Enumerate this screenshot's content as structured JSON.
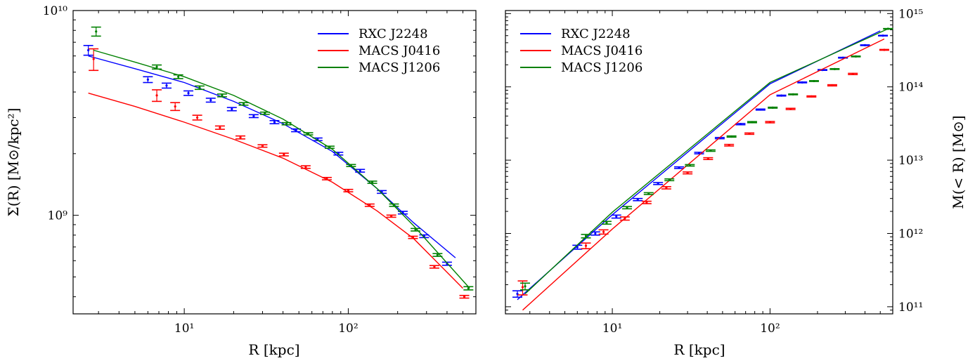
{
  "chart_data": [
    {
      "type": "line",
      "xlabel": "R [kpc]",
      "ylabel": "Σ(R) [M⊙/kpc²]",
      "x_scale": "log",
      "y_scale": "log",
      "xlim": [
        2.1,
        600
      ],
      "ylim": [
        330000000.0,
        10000000000.0
      ],
      "x_major_ticks": [
        {
          "value": 10,
          "label": "10¹"
        },
        {
          "value": 100,
          "label": "10²"
        }
      ],
      "y_major_ticks": [
        {
          "value": 1000000000.0,
          "label": "10⁹"
        },
        {
          "value": 10000000000.0,
          "label": "10¹⁰"
        }
      ],
      "legend": "top-right",
      "grid": false,
      "series": [
        {
          "name": "RXC J2248",
          "color": "#0000ff",
          "model_x": [
            2.6,
            5,
            10,
            20,
            40,
            80,
            150,
            250,
            450
          ],
          "model_y": [
            6000000000.0,
            5200000000.0,
            4450000000.0,
            3600000000.0,
            2800000000.0,
            2050000000.0,
            1350000000.0,
            920000000.0,
            620000000.0
          ],
          "points_x": [
            2.6,
            6.0,
            7.8,
            10.6,
            14.5,
            19.5,
            26.5,
            35.5,
            48,
            65,
            87,
            118,
            160,
            215,
            290,
            400
          ],
          "points_y": [
            6400000000.0,
            4600000000.0,
            4300000000.0,
            3950000000.0,
            3650000000.0,
            3300000000.0,
            3050000000.0,
            2850000000.0,
            2600000000.0,
            2350000000.0,
            2000000000.0,
            1650000000.0,
            1300000000.0,
            1030000000.0,
            790000000.0,
            580000000.0
          ],
          "errors": [
            350000000.0,
            150000000.0,
            120000000.0,
            100000000.0,
            80000000.0,
            60000000.0,
            50000000.0,
            50000000.0,
            40000000.0,
            35000000.0,
            30000000.0,
            25000000.0,
            20000000.0,
            15000000.0,
            12000000.0,
            10000000.0
          ]
        },
        {
          "name": "MACS J0416",
          "color": "#ff0000",
          "model_x": [
            2.6,
            5,
            10,
            20,
            40,
            80,
            150,
            250,
            500
          ],
          "model_y": [
            3950000000.0,
            3400000000.0,
            2850000000.0,
            2350000000.0,
            1900000000.0,
            1450000000.0,
            1050000000.0,
            770000000.0,
            440000000.0
          ],
          "points_x": [
            2.8,
            6.8,
            8.8,
            12,
            16.5,
            22,
            30,
            40.5,
            55,
            74,
            100,
            135,
            183,
            248,
            335,
            510
          ],
          "points_y": [
            5800000000.0,
            3850000000.0,
            3400000000.0,
            3000000000.0,
            2680000000.0,
            2400000000.0,
            2180000000.0,
            1980000000.0,
            1720000000.0,
            1510000000.0,
            1320000000.0,
            1120000000.0,
            990000000.0,
            780000000.0,
            560000000.0,
            400000000.0
          ],
          "errors": [
            700000000.0,
            250000000.0,
            150000000.0,
            80000000.0,
            50000000.0,
            40000000.0,
            30000000.0,
            30000000.0,
            25000000.0,
            20000000.0,
            18000000.0,
            15000000.0,
            12000000.0,
            10000000.0,
            8000000.0,
            6000000.0
          ]
        },
        {
          "name": "MACS J1206",
          "color": "#008000",
          "model_x": [
            2.8,
            5,
            10,
            20,
            40,
            80,
            150,
            250,
            550
          ],
          "model_y": [
            6400000000.0,
            5600000000.0,
            4750000000.0,
            3850000000.0,
            2950000000.0,
            2100000000.0,
            1350000000.0,
            890000000.0,
            440000000.0
          ],
          "points_x": [
            2.9,
            6.8,
            9.2,
            12.4,
            17,
            23,
            31,
            42,
            57,
            77,
            104,
            140,
            190,
            257,
            350,
            540
          ],
          "points_y": [
            7900000000.0,
            5300000000.0,
            4750000000.0,
            4200000000.0,
            3850000000.0,
            3500000000.0,
            3150000000.0,
            2800000000.0,
            2500000000.0,
            2150000000.0,
            1750000000.0,
            1450000000.0,
            1120000000.0,
            850000000.0,
            640000000.0,
            440000000.0
          ],
          "errors": [
            400000000.0,
            120000000.0,
            100000000.0,
            80000000.0,
            60000000.0,
            50000000.0,
            40000000.0,
            35000000.0,
            30000000.0,
            25000000.0,
            20000000.0,
            18000000.0,
            15000000.0,
            12000000.0,
            10000000.0,
            8000000.0
          ]
        }
      ]
    },
    {
      "type": "line",
      "xlabel": "R [kpc]",
      "ylabel": "M(< R) [M⊙]",
      "x_scale": "log",
      "y_scale": "log",
      "xlim": [
        2.1,
        600
      ],
      "ylim": [
        80000000000.0,
        1100000000000000.0
      ],
      "x_major_ticks": [
        {
          "value": 10,
          "label": "10¹"
        },
        {
          "value": 100,
          "label": "10²"
        }
      ],
      "y_major_ticks": [
        {
          "value": 100000000000.0,
          "label": "10¹¹"
        },
        {
          "value": 1000000000000.0,
          "label": "10¹²"
        },
        {
          "value": 10000000000000.0,
          "label": "10¹³"
        },
        {
          "value": 100000000000000.0,
          "label": "10¹⁴"
        },
        {
          "value": 1000000000000000.0,
          "label": "10¹⁵"
        }
      ],
      "legend": "top-left",
      "grid": false,
      "series": [
        {
          "name": "RXC J2248",
          "color": "#0000ff",
          "model_x": [
            2.5,
            10,
            100,
            500
          ],
          "model_y": [
            125000000000.0,
            1800000000000.0,
            110000000000000.0,
            580000000000000.0
          ],
          "points_x": [
            2.5,
            6.0,
            7.8,
            10.6,
            14.5,
            19.5,
            26.5,
            35.5,
            48,
            65,
            87,
            118,
            160,
            215,
            290,
            400,
            520
          ],
          "points_y": [
            150000000000.0,
            650000000000.0,
            1000000000000.0,
            1700000000000.0,
            2900000000000.0,
            4800000000000.0,
            7900000000000.0,
            12500000000000.0,
            20000000000000.0,
            31000000000000.0,
            49000000000000.0,
            76000000000000.0,
            115000000000000.0,
            170000000000000.0,
            250000000000000.0,
            370000000000000.0,
            500000000000000.0
          ],
          "errors": [
            15000000000.0,
            40000000000.0,
            50000000000.0,
            80000000000.0,
            100000000000.0,
            150000000000.0,
            200000000000.0,
            300000000000.0,
            400000000000.0,
            600000000000.0,
            800000000000.0,
            1000000000000.0,
            1500000000000.0,
            2000000000000.0,
            3000000000000.0,
            4000000000000.0,
            5000000000000.0
          ]
        },
        {
          "name": "MACS J0416",
          "color": "#ff0000",
          "model_x": [
            2.7,
            10,
            100,
            530
          ],
          "model_y": [
            90000000000.0,
            1150000000000.0,
            78000000000000.0,
            450000000000000.0
          ],
          "points_x": [
            2.7,
            6.8,
            8.8,
            12,
            16.5,
            22,
            30,
            40.5,
            55,
            74,
            100,
            135,
            183,
            248,
            335,
            530
          ],
          "points_y": [
            185000000000.0,
            680000000000.0,
            1050000000000.0,
            1600000000000.0,
            2650000000000.0,
            4200000000000.0,
            6700000000000.0,
            10500000000000.0,
            16000000000000.0,
            23000000000000.0,
            33000000000000.0,
            50000000000000.0,
            74000000000000.0,
            105000000000000.0,
            150000000000000.0,
            320000000000000.0
          ],
          "errors": [
            40000000000.0,
            60000000000.0,
            70000000000.0,
            80000000000.0,
            100000000000.0,
            150000000000.0,
            200000000000.0,
            300000000000.0,
            400000000000.0,
            500000000000.0,
            700000000000.0,
            1000000000000.0,
            1300000000000.0,
            2000000000000.0,
            3000000000000.0,
            4000000000000.0
          ]
        },
        {
          "name": "MACS J1206",
          "color": "#008000",
          "model_x": [
            2.8,
            10,
            100,
            560
          ],
          "model_y": [
            150000000000.0,
            1950000000000.0,
            115000000000000.0,
            620000000000000.0
          ],
          "points_x": [
            2.8,
            6.8,
            9.2,
            12.4,
            17,
            23,
            31,
            42,
            57,
            77,
            104,
            140,
            190,
            257,
            350,
            560
          ],
          "points_y": [
            190000000000.0,
            920000000000.0,
            1400000000000.0,
            2250000000000.0,
            3500000000000.0,
            5400000000000.0,
            8500000000000.0,
            13500000000000.0,
            21000000000000.0,
            33000000000000.0,
            52000000000000.0,
            79000000000000.0,
            120000000000000.0,
            175000000000000.0,
            260000000000000.0,
            620000000000000.0
          ],
          "errors": [
            20000000000.0,
            50000000000.0,
            60000000000.0,
            80000000000.0,
            100000000000.0,
            150000000000.0,
            200000000000.0,
            300000000000.0,
            400000000000.0,
            600000000000.0,
            800000000000.0,
            1000000000000.0,
            1500000000000.0,
            2000000000000.0,
            3000000000000.0,
            5000000000000.0
          ]
        }
      ]
    }
  ]
}
